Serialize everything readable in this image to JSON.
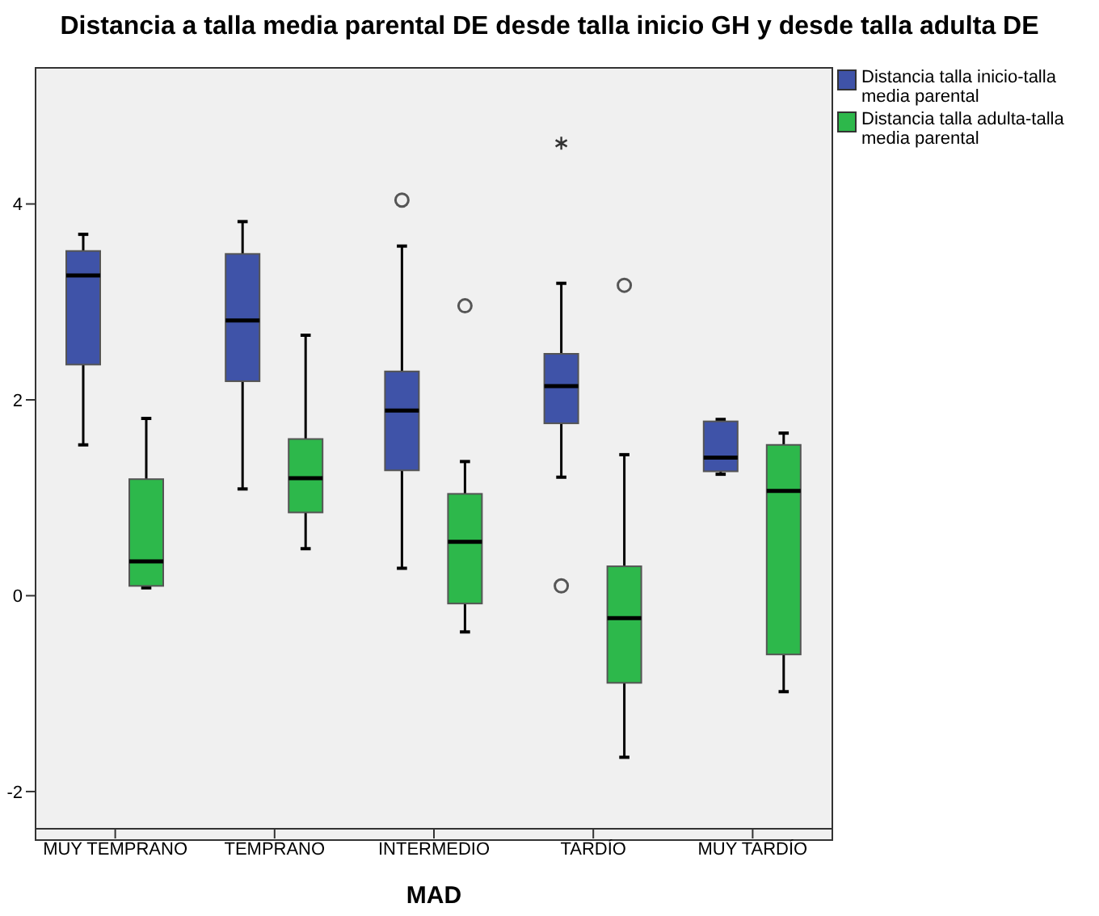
{
  "chart_data": {
    "type": "box",
    "title": "Distancia a talla media parental DE desde talla inicio GH y desde talla adulta DE",
    "xlabel": "MAD",
    "categories": [
      "MUY TEMPRANO",
      "TEMPRANO",
      "INTERMEDIO",
      "TARDÍO",
      "MUY TARDÍO"
    ],
    "ylim": [
      -2.38,
      5.39
    ],
    "yticks": [
      -2,
      0,
      2,
      4
    ],
    "legend": "top right",
    "series": [
      {
        "name": "Distancia talla inicio-talla media parental",
        "color": "#3f53a8",
        "boxes": [
          {
            "low": 1.54,
            "q1": 2.36,
            "median": 3.27,
            "q3": 3.52,
            "high": 3.69
          },
          {
            "low": 1.09,
            "q1": 2.19,
            "median": 2.81,
            "q3": 3.49,
            "high": 3.82
          },
          {
            "low": 0.28,
            "q1": 1.28,
            "median": 1.89,
            "q3": 2.29,
            "high": 3.57,
            "outliers": [
              4.04
            ]
          },
          {
            "low": 1.21,
            "q1": 1.76,
            "median": 2.14,
            "q3": 2.47,
            "high": 3.19,
            "outliers": [
              4.62,
              0.1
            ]
          },
          {
            "low": 1.24,
            "q1": 1.27,
            "median": 1.41,
            "q3": 1.78,
            "high": 1.8
          }
        ]
      },
      {
        "name": "Distancia talla adulta-talla media parental",
        "color": "#2db84b",
        "boxes": [
          {
            "low": 0.08,
            "q1": 0.1,
            "median": 0.35,
            "q3": 1.19,
            "high": 1.81
          },
          {
            "low": 0.48,
            "q1": 0.85,
            "median": 1.2,
            "q3": 1.6,
            "high": 2.66
          },
          {
            "low": -0.37,
            "q1": -0.08,
            "median": 0.55,
            "q3": 1.04,
            "high": 1.37,
            "outliers": [
              2.96
            ]
          },
          {
            "low": -1.65,
            "q1": -0.89,
            "median": -0.23,
            "q3": 0.3,
            "high": 1.44,
            "outliers": [
              3.17
            ]
          },
          {
            "low": -0.98,
            "q1": -0.6,
            "median": 1.07,
            "q3": 1.54,
            "high": 1.66
          }
        ]
      }
    ]
  }
}
